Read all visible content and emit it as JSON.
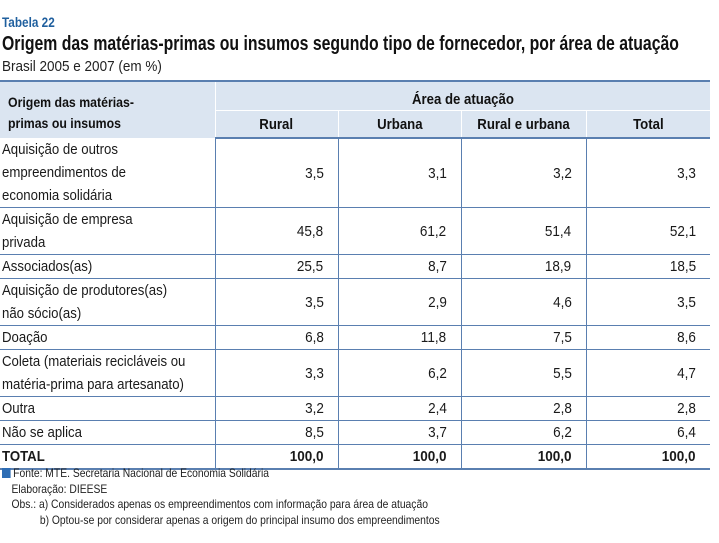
{
  "header": {
    "label": "Tabela 22",
    "title": "Origem das matérias-primas ou insumos segundo tipo de fornecedor, por área de atuação",
    "subtitle": "Brasil 2005 e 2007 (em %)"
  },
  "table": {
    "row_header": [
      "Origem das matérias-",
      "primas ou insumos"
    ],
    "group_header": "Área de atuação",
    "columns": [
      "Rural",
      "Urbana",
      "Rural e urbana",
      "Total"
    ],
    "rows": [
      {
        "label": [
          "Aquisição de outros",
          "empreendimentos de",
          "economia solidária"
        ],
        "values": [
          "3,5",
          "3,1",
          "3,2",
          "3,3"
        ]
      },
      {
        "label": [
          "Aquisição de empresa",
          "privada"
        ],
        "values": [
          "45,8",
          "61,2",
          "51,4",
          "52,1"
        ]
      },
      {
        "label": [
          "Associados(as)"
        ],
        "values": [
          "25,5",
          "8,7",
          "18,9",
          "18,5"
        ]
      },
      {
        "label": [
          "Aquisição de produtores(as)",
          "não sócio(as)"
        ],
        "values": [
          "3,5",
          "2,9",
          "4,6",
          "3,5"
        ]
      },
      {
        "label": [
          "Doação"
        ],
        "values": [
          "6,8",
          "11,8",
          "7,5",
          "8,6"
        ]
      },
      {
        "label": [
          "Coleta (materiais recicláveis ou",
          "matéria-prima para artesanato)"
        ],
        "values": [
          "3,3",
          "6,2",
          "5,5",
          "4,7"
        ]
      },
      {
        "label": [
          "Outra"
        ],
        "values": [
          "3,2",
          "2,4",
          "2,8",
          "2,8"
        ]
      },
      {
        "label": [
          "Não se aplica"
        ],
        "values": [
          "8,5",
          "3,7",
          "6,2",
          "6,4"
        ]
      }
    ],
    "total": {
      "label": "TOTAL",
      "values": [
        "100,0",
        "100,0",
        "100,0",
        "100,0"
      ]
    }
  },
  "notes": {
    "source": "Fonte: MTE. Secretaria Nacional de Economia Solidária",
    "elaboration": "Elaboração: DIEESE",
    "obs_a": "Obs.: a) Considerados apenas os empreendimentos com informação para área de atuação",
    "obs_b": "b) Optou-se por considerar apenas a origem do principal insumo dos empreendimentos"
  },
  "colors": {
    "accent": "#1f5f9e",
    "header_bg": "#dbe5f1",
    "rule": "#5a7fb0"
  }
}
